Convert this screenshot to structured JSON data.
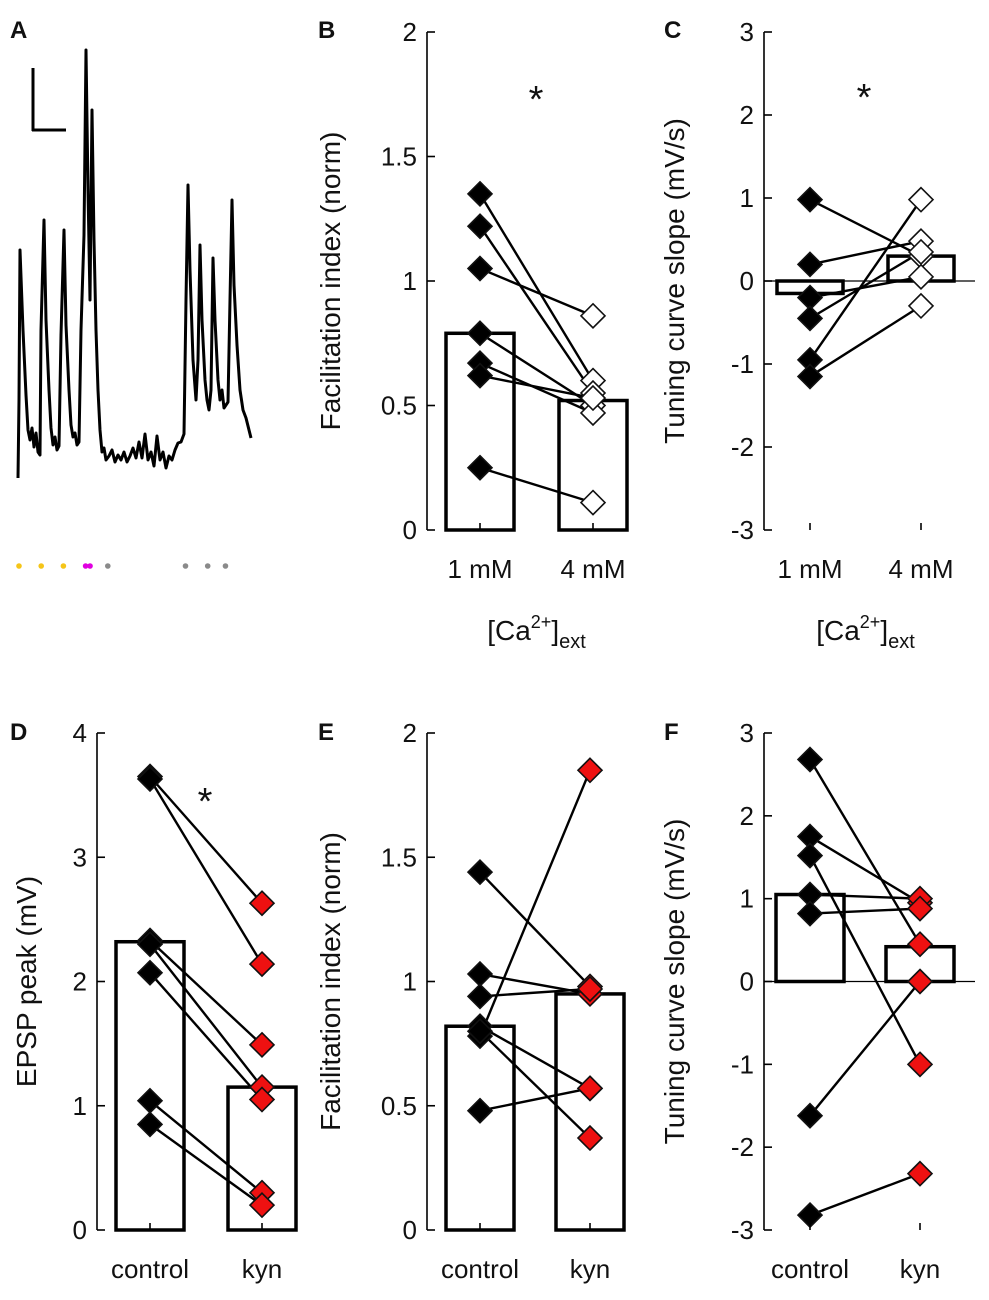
{
  "panel_a": {
    "label": "A",
    "stimulus_dots": [
      {
        "t": 0,
        "color": "#f5c518"
      },
      {
        "t": 1,
        "color": "#f5c518"
      },
      {
        "t": 2,
        "color": "#f5c518"
      },
      {
        "t": 3,
        "color": "#e000e0"
      },
      {
        "t": 3.2,
        "color": "#e000e0"
      },
      {
        "t": 4,
        "color": "#8a8a8a"
      },
      {
        "t": 7.5,
        "color": "#8a8a8a"
      },
      {
        "t": 8.5,
        "color": "#8a8a8a"
      },
      {
        "t": 9.3,
        "color": "#8a8a8a"
      }
    ]
  },
  "colors": {
    "control": "#000000",
    "treatment_open": "#ffffff",
    "kyn": "#ee1111",
    "stroke": "#111111"
  },
  "chart_data": [
    {
      "id": "B",
      "type": "bar",
      "label": "B",
      "categories": [
        "1 mM",
        "4 mM"
      ],
      "xlabel": "[Ca2+]ext",
      "xlabel_base": "[Ca",
      "xlabel_sup": "2+",
      "xlabel_close": "]",
      "xlabel_sub": "ext",
      "ylabel": "Facilitation index (norm)",
      "ylim": [
        0,
        2
      ],
      "yticks": [
        0,
        0.5,
        1,
        1.5,
        2
      ],
      "ytick_labels": [
        "0",
        "0.5",
        "1",
        "1.5",
        "2"
      ],
      "bar_values": [
        0.79,
        0.52
      ],
      "pairs": [
        [
          1.35,
          0.6
        ],
        [
          1.22,
          0.55
        ],
        [
          1.05,
          0.86
        ],
        [
          0.79,
          0.5
        ],
        [
          0.67,
          0.47
        ],
        [
          0.62,
          0.53
        ],
        [
          0.25,
          0.11
        ]
      ],
      "treatment_fill": "open",
      "significance": "*",
      "zero_line": false
    },
    {
      "id": "C",
      "type": "bar",
      "label": "C",
      "categories": [
        "1 mM",
        "4 mM"
      ],
      "xlabel": "[Ca2+]ext",
      "xlabel_base": "[Ca",
      "xlabel_sup": "2+",
      "xlabel_close": "]",
      "xlabel_sub": "ext",
      "ylabel": "Tuning curve slope (mV/s)",
      "ylim": [
        -3,
        3
      ],
      "yticks": [
        -3,
        -2,
        -1,
        0,
        1,
        2,
        3
      ],
      "ytick_labels": [
        "-3",
        "-2",
        "-1",
        "0",
        "1",
        "2",
        "3"
      ],
      "bar_values": [
        -0.15,
        0.3
      ],
      "pairs": [
        [
          0.98,
          0.3
        ],
        [
          0.2,
          0.48
        ],
        [
          -0.2,
          0.05
        ],
        [
          -0.45,
          0.35
        ],
        [
          -0.95,
          0.98
        ],
        [
          -1.15,
          -0.3
        ]
      ],
      "treatment_fill": "open",
      "significance": "*",
      "zero_line": true
    },
    {
      "id": "D",
      "type": "bar",
      "label": "D",
      "categories": [
        "control",
        "kyn"
      ],
      "xlabel": "",
      "ylabel": "EPSP peak (mV)",
      "ylim": [
        0,
        4
      ],
      "yticks": [
        0,
        1,
        2,
        3,
        4
      ],
      "ytick_labels": [
        "0",
        "1",
        "2",
        "3",
        "4"
      ],
      "bar_values": [
        2.32,
        1.15
      ],
      "pairs": [
        [
          3.65,
          2.63
        ],
        [
          3.63,
          2.14
        ],
        [
          2.33,
          1.49
        ],
        [
          2.3,
          1.15
        ],
        [
          2.07,
          1.05
        ],
        [
          1.04,
          0.3
        ],
        [
          0.85,
          0.2
        ]
      ],
      "treatment_fill": "red",
      "significance": "*",
      "zero_line": false
    },
    {
      "id": "E",
      "type": "bar",
      "label": "E",
      "categories": [
        "control",
        "kyn"
      ],
      "xlabel": "",
      "ylabel": "Facilitation index (norm)",
      "ylim": [
        0,
        2
      ],
      "yticks": [
        0,
        0.5,
        1,
        1.5,
        2
      ],
      "ytick_labels": [
        "0",
        "0.5",
        "1",
        "1.5",
        "2"
      ],
      "bar_values": [
        0.82,
        0.95
      ],
      "pairs": [
        [
          1.44,
          0.98
        ],
        [
          1.03,
          0.95
        ],
        [
          0.94,
          0.97
        ],
        [
          0.82,
          0.57
        ],
        [
          0.78,
          1.85
        ],
        [
          0.48,
          0.57
        ],
        [
          0.8,
          0.37
        ]
      ],
      "treatment_fill": "red",
      "significance": "",
      "zero_line": false
    },
    {
      "id": "F",
      "type": "bar",
      "label": "F",
      "categories": [
        "control",
        "kyn"
      ],
      "xlabel": "",
      "ylabel": "Tuning curve slope (mV/s)",
      "ylim": [
        -3,
        3
      ],
      "yticks": [
        -3,
        -2,
        -1,
        0,
        1,
        2,
        3
      ],
      "ytick_labels": [
        "-3",
        "-2",
        "-1",
        "0",
        "1",
        "2",
        "3"
      ],
      "bar_values": [
        1.05,
        0.42
      ],
      "pairs": [
        [
          2.68,
          0.45
        ],
        [
          1.75,
          0.95
        ],
        [
          1.52,
          -1.0
        ],
        [
          1.05,
          1.0
        ],
        [
          0.82,
          0.88
        ],
        [
          -1.62,
          0.0
        ],
        [
          -2.82,
          -2.32
        ]
      ],
      "treatment_fill": "red",
      "significance": "",
      "zero_line": true
    }
  ]
}
